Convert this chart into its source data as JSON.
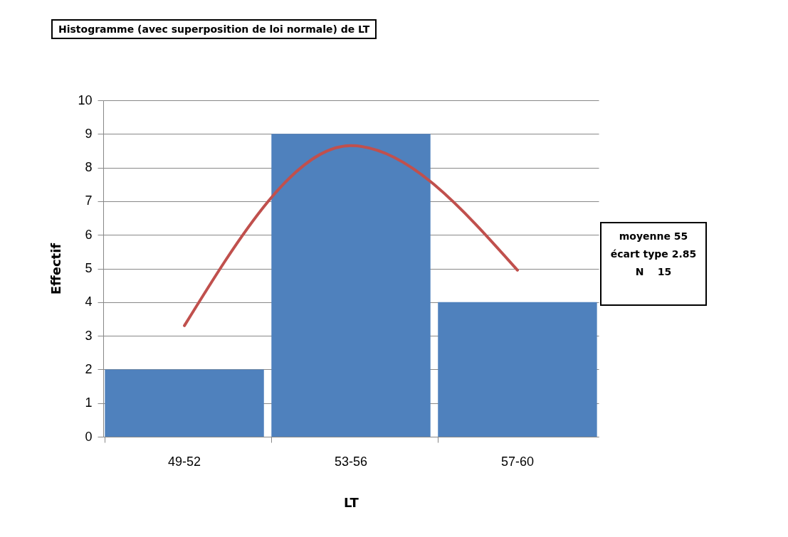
{
  "chart_data": {
    "type": "bar",
    "title": "Histogramme (avec superposition de loi normale) de LT",
    "xlabel": "LT",
    "ylabel": "Effectif",
    "categories": [
      "49-52",
      "53-56",
      "57-60"
    ],
    "series": [
      {
        "type": "bar",
        "color": "#4f81bd",
        "values": [
          2,
          9,
          4
        ]
      },
      {
        "type": "line",
        "color": "#c0504d",
        "values": [
          3.3,
          8.65,
          4.95
        ]
      }
    ],
    "ylim": [
      0,
      10
    ],
    "yticks": [
      0,
      1,
      2,
      3,
      4,
      5,
      6,
      7,
      8,
      9,
      10
    ],
    "grid": "y",
    "marker": "none",
    "line_style": "solid",
    "annotations": [
      "moyenne 55",
      "écart type 2.85",
      "N    15"
    ]
  }
}
